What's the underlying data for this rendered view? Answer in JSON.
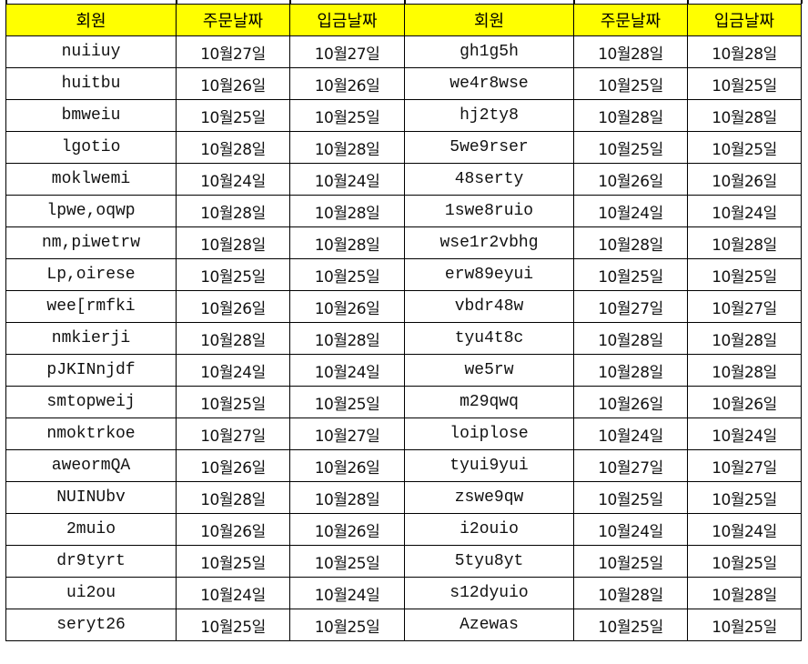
{
  "header": [
    "회원",
    "주문날짜",
    "입금날짜",
    "회원",
    "주문날짜",
    "입금날짜"
  ],
  "colors": {
    "header_bg": "#ffff00",
    "border": "#000000"
  },
  "rows": [
    [
      "nuiiuy",
      "10월27일",
      "10월27일",
      "gh1g5h",
      "10월28일",
      "10월28일"
    ],
    [
      "huitbu",
      "10월26일",
      "10월26일",
      "we4r8wse",
      "10월25일",
      "10월25일"
    ],
    [
      "bmweiu",
      "10월25일",
      "10월25일",
      "hj2ty8",
      "10월28일",
      "10월28일"
    ],
    [
      "lgotio",
      "10월28일",
      "10월28일",
      "5we9rser",
      "10월25일",
      "10월25일"
    ],
    [
      "moklwemi",
      "10월24일",
      "10월24일",
      "48serty",
      "10월26일",
      "10월26일"
    ],
    [
      "lpwe,oqwp",
      "10월28일",
      "10월28일",
      "1swe8ruio",
      "10월24일",
      "10월24일"
    ],
    [
      "nm,piwetrw",
      "10월28일",
      "10월28일",
      "wse1r2vbhg",
      "10월28일",
      "10월28일"
    ],
    [
      "Lp,oirese",
      "10월25일",
      "10월25일",
      "erw89eyui",
      "10월25일",
      "10월25일"
    ],
    [
      "wee[rmfki",
      "10월26일",
      "10월26일",
      "vbdr48w",
      "10월27일",
      "10월27일"
    ],
    [
      "nmkierji",
      "10월28일",
      "10월28일",
      "tyu4t8c",
      "10월28일",
      "10월28일"
    ],
    [
      "pJKINnjdf",
      "10월24일",
      "10월24일",
      "we5rw",
      "10월28일",
      "10월28일"
    ],
    [
      "smtopweij",
      "10월25일",
      "10월25일",
      "m29qwq",
      "10월26일",
      "10월26일"
    ],
    [
      "nmoktrkoe",
      "10월27일",
      "10월27일",
      "loiplose",
      "10월24일",
      "10월24일"
    ],
    [
      "aweormQA",
      "10월26일",
      "10월26일",
      "tyui9yui",
      "10월27일",
      "10월27일"
    ],
    [
      "NUINUbv",
      "10월28일",
      "10월28일",
      "zswe9qw",
      "10월25일",
      "10월25일"
    ],
    [
      "2muio",
      "10월26일",
      "10월26일",
      "i2ouio",
      "10월24일",
      "10월24일"
    ],
    [
      "dr9tyrt",
      "10월25일",
      "10월25일",
      "5tyu8yt",
      "10월25일",
      "10월25일"
    ],
    [
      "ui2ou",
      "10월24일",
      "10월24일",
      "s12dyuio",
      "10월28일",
      "10월28일"
    ],
    [
      "seryt26",
      "10월25일",
      "10월25일",
      "Azewas",
      "10월25일",
      "10월25일"
    ]
  ]
}
